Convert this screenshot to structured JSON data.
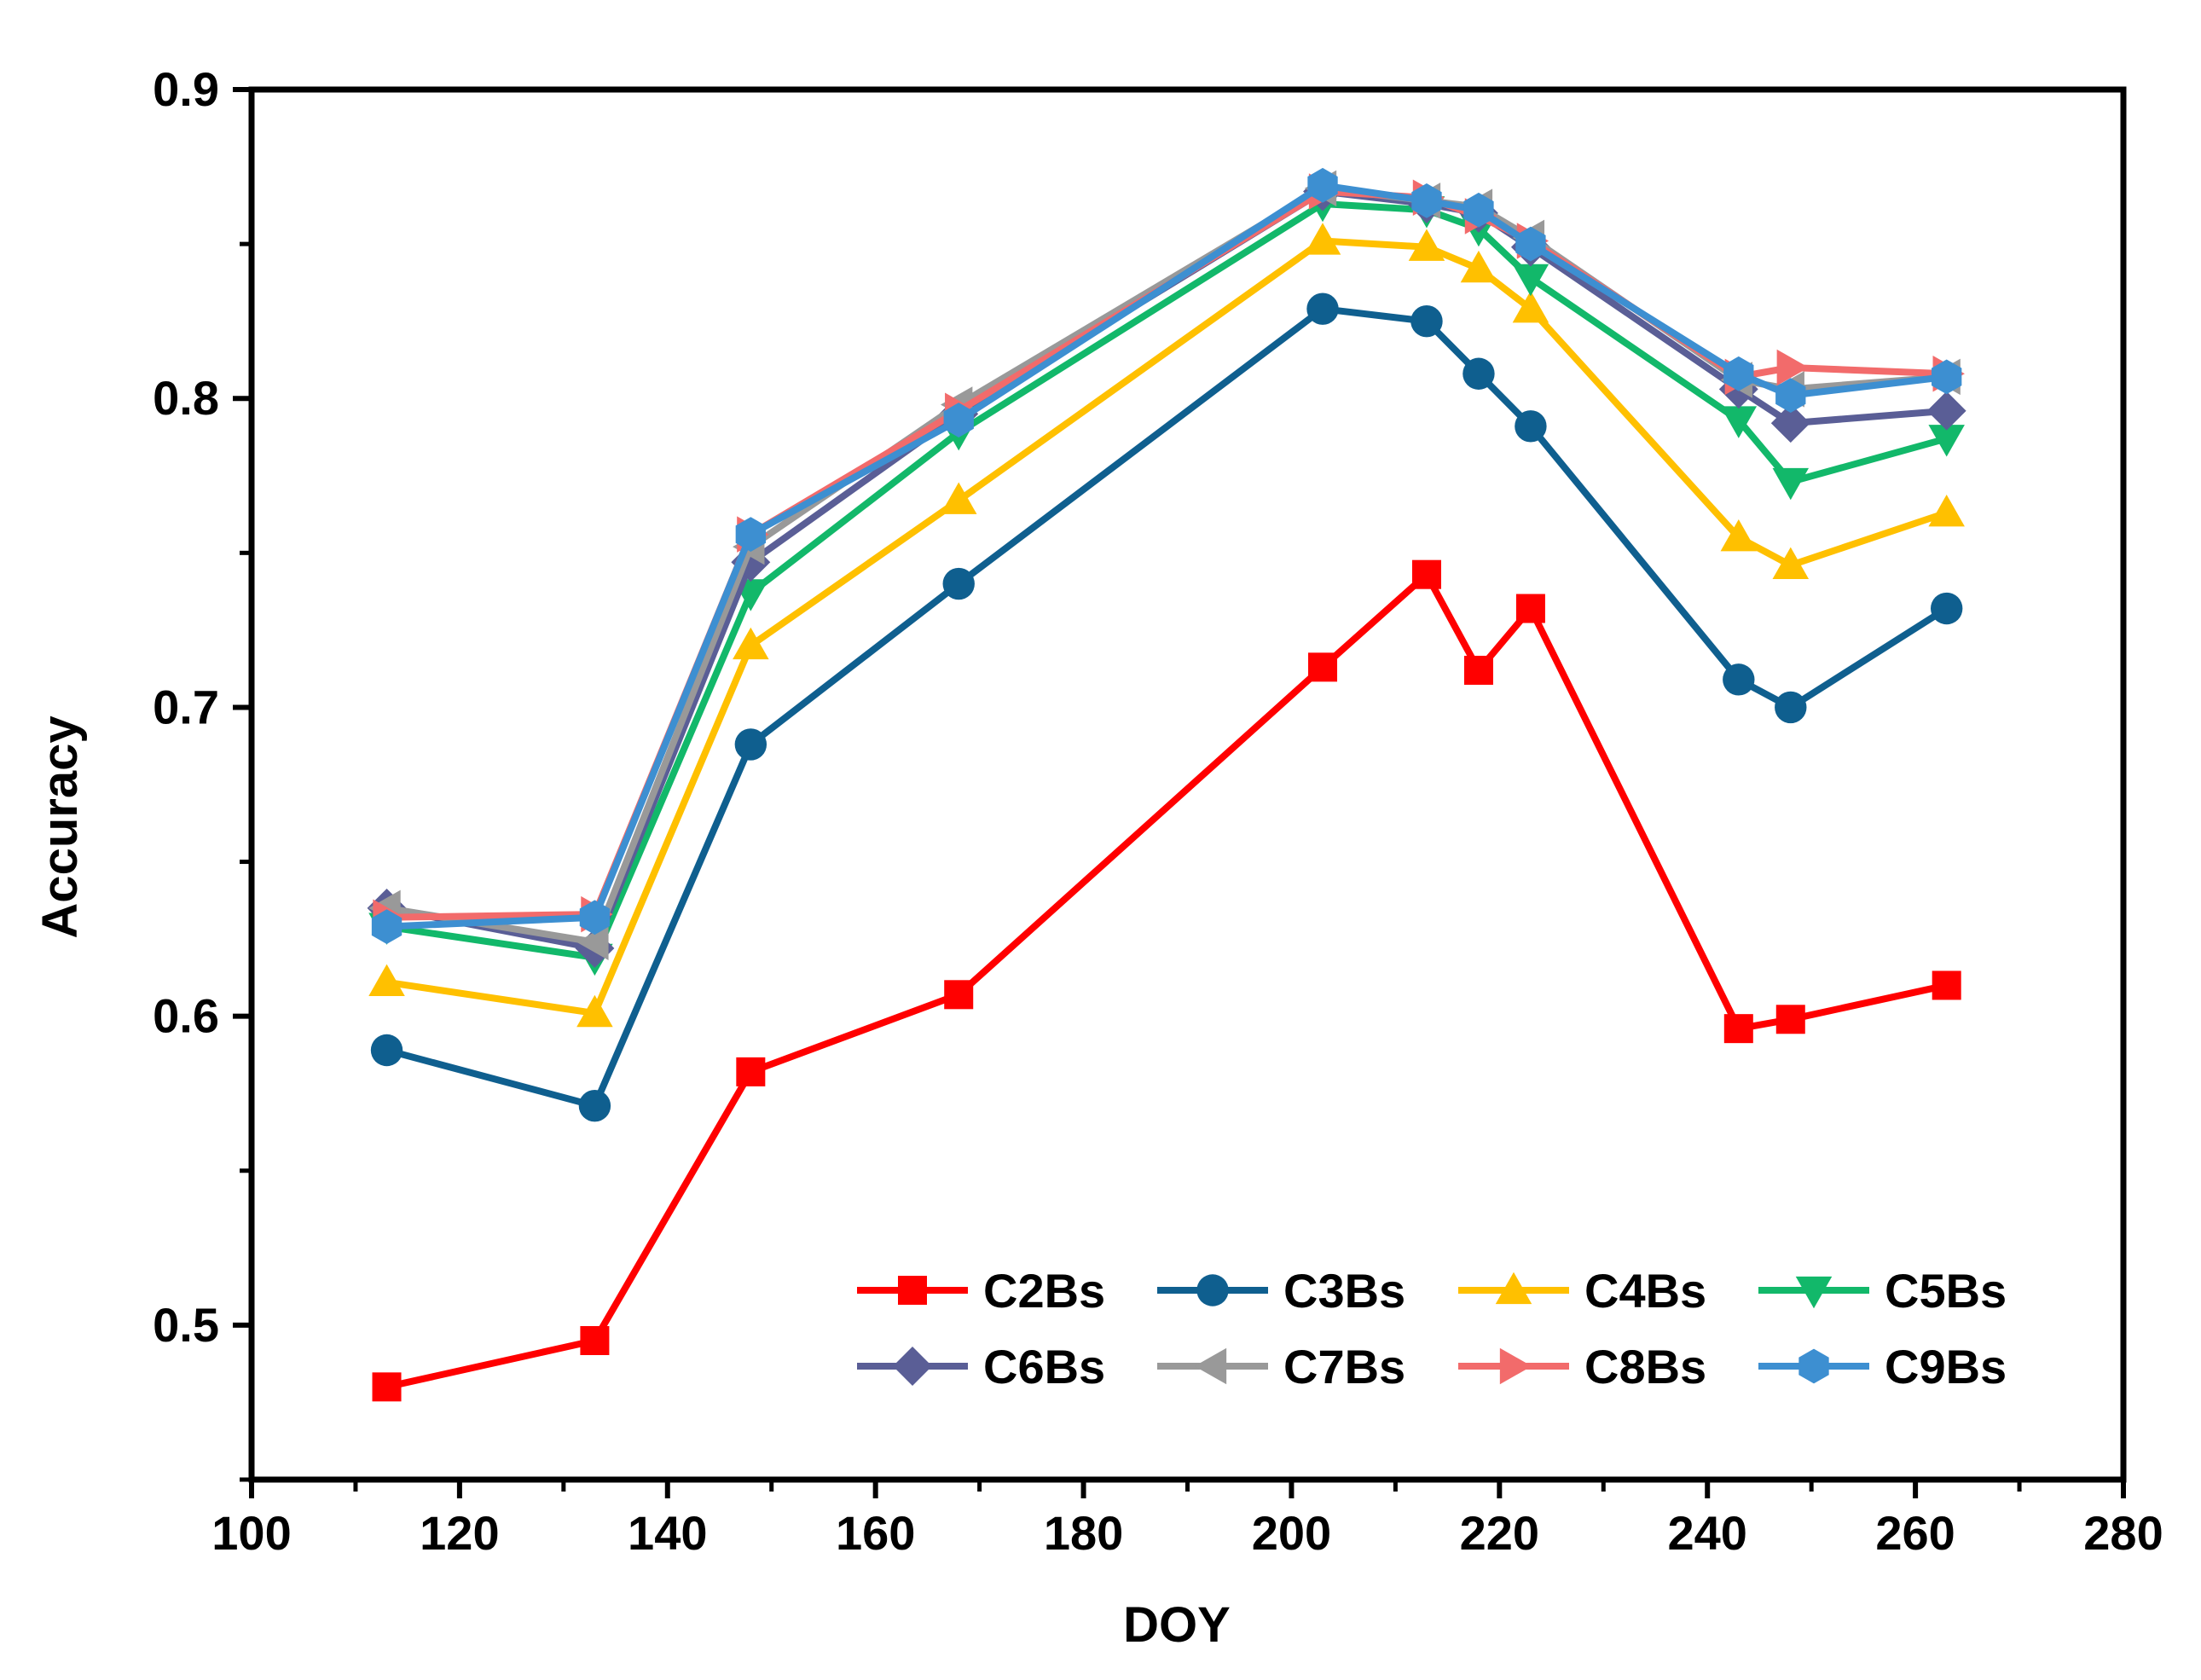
{
  "chart_data": {
    "type": "line",
    "title": "",
    "xlabel": "DOY",
    "ylabel": "Accuracy",
    "xlim": [
      100,
      280
    ],
    "ylim": [
      0.45,
      0.9
    ],
    "xticks": [
      100,
      120,
      140,
      160,
      180,
      200,
      220,
      240,
      260,
      280
    ],
    "yticks": [
      0.5,
      0.6,
      0.7,
      0.8,
      0.9
    ],
    "xtick_labels": [
      "100",
      "120",
      "140",
      "160",
      "180",
      "200",
      "220",
      "240",
      "260",
      "280"
    ],
    "ytick_labels": [
      "0.5",
      "0.6",
      "0.7",
      "0.8",
      "0.9"
    ],
    "x": [
      113,
      133,
      148,
      168,
      203,
      213,
      218,
      223,
      243,
      248,
      263
    ],
    "legend_position": "bottom-right",
    "series": [
      {
        "name": "C2Bs",
        "color": "#ff0000",
        "marker": "square",
        "values": [
          0.48,
          0.495,
          0.582,
          0.607,
          0.713,
          0.743,
          0.712,
          0.732,
          0.596,
          0.599,
          0.61
        ]
      },
      {
        "name": "C3Bs",
        "color": "#0f5f8f",
        "marker": "circle",
        "values": [
          0.589,
          0.571,
          0.688,
          0.74,
          0.829,
          0.825,
          0.808,
          0.791,
          0.709,
          0.7,
          0.732
        ]
      },
      {
        "name": "C4Bs",
        "color": "#ffc000",
        "marker": "triangle-up",
        "values": [
          0.611,
          0.601,
          0.72,
          0.767,
          0.851,
          0.849,
          0.842,
          0.829,
          0.755,
          0.746,
          0.763
        ]
      },
      {
        "name": "C5Bs",
        "color": "#12b86a",
        "marker": "triangle-down",
        "values": [
          0.629,
          0.619,
          0.737,
          0.789,
          0.863,
          0.861,
          0.855,
          0.839,
          0.793,
          0.773,
          0.787
        ]
      },
      {
        "name": "C6Bs",
        "color": "#5a5e96",
        "marker": "diamond",
        "values": [
          0.635,
          0.622,
          0.747,
          0.795,
          0.867,
          0.863,
          0.86,
          0.849,
          0.803,
          0.792,
          0.796
        ]
      },
      {
        "name": "C7Bs",
        "color": "#999999",
        "marker": "triangle-left",
        "values": [
          0.635,
          0.624,
          0.752,
          0.798,
          0.868,
          0.864,
          0.862,
          0.852,
          0.806,
          0.803,
          0.807
        ]
      },
      {
        "name": "C8Bs",
        "color": "#f26b6b",
        "marker": "triangle-right",
        "values": [
          0.632,
          0.633,
          0.756,
          0.796,
          0.867,
          0.865,
          0.859,
          0.851,
          0.807,
          0.81,
          0.808
        ]
      },
      {
        "name": "C9Bs",
        "color": "#3d8fd1",
        "marker": "hexagon",
        "values": [
          0.629,
          0.632,
          0.756,
          0.793,
          0.869,
          0.864,
          0.861,
          0.85,
          0.808,
          0.801,
          0.807
        ]
      }
    ]
  }
}
